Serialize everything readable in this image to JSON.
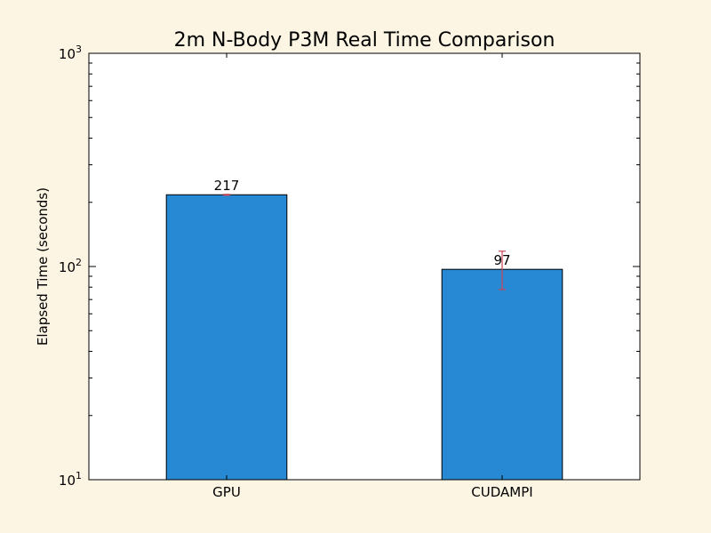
{
  "chart_data": {
    "type": "bar",
    "title": "2m N-Body P3M Real Time Comparison",
    "xlabel": "",
    "ylabel": "Elapsed Time (seconds)",
    "yscale": "log",
    "ylim": [
      10,
      1000
    ],
    "y_ticks": [
      {
        "value": 10,
        "base": "10",
        "exp": "1"
      },
      {
        "value": 100,
        "base": "10",
        "exp": "2"
      },
      {
        "value": 1000,
        "base": "10",
        "exp": "3"
      }
    ],
    "categories": [
      "GPU",
      "CUDAMPI"
    ],
    "values": [
      217,
      97
    ],
    "error_low": [
      216,
      78
    ],
    "error_high": [
      218,
      118
    ],
    "data_labels": [
      "217",
      "97"
    ],
    "bar_color": "#2789d3",
    "error_color": "#cc4455",
    "grid": false,
    "legend": "none"
  }
}
